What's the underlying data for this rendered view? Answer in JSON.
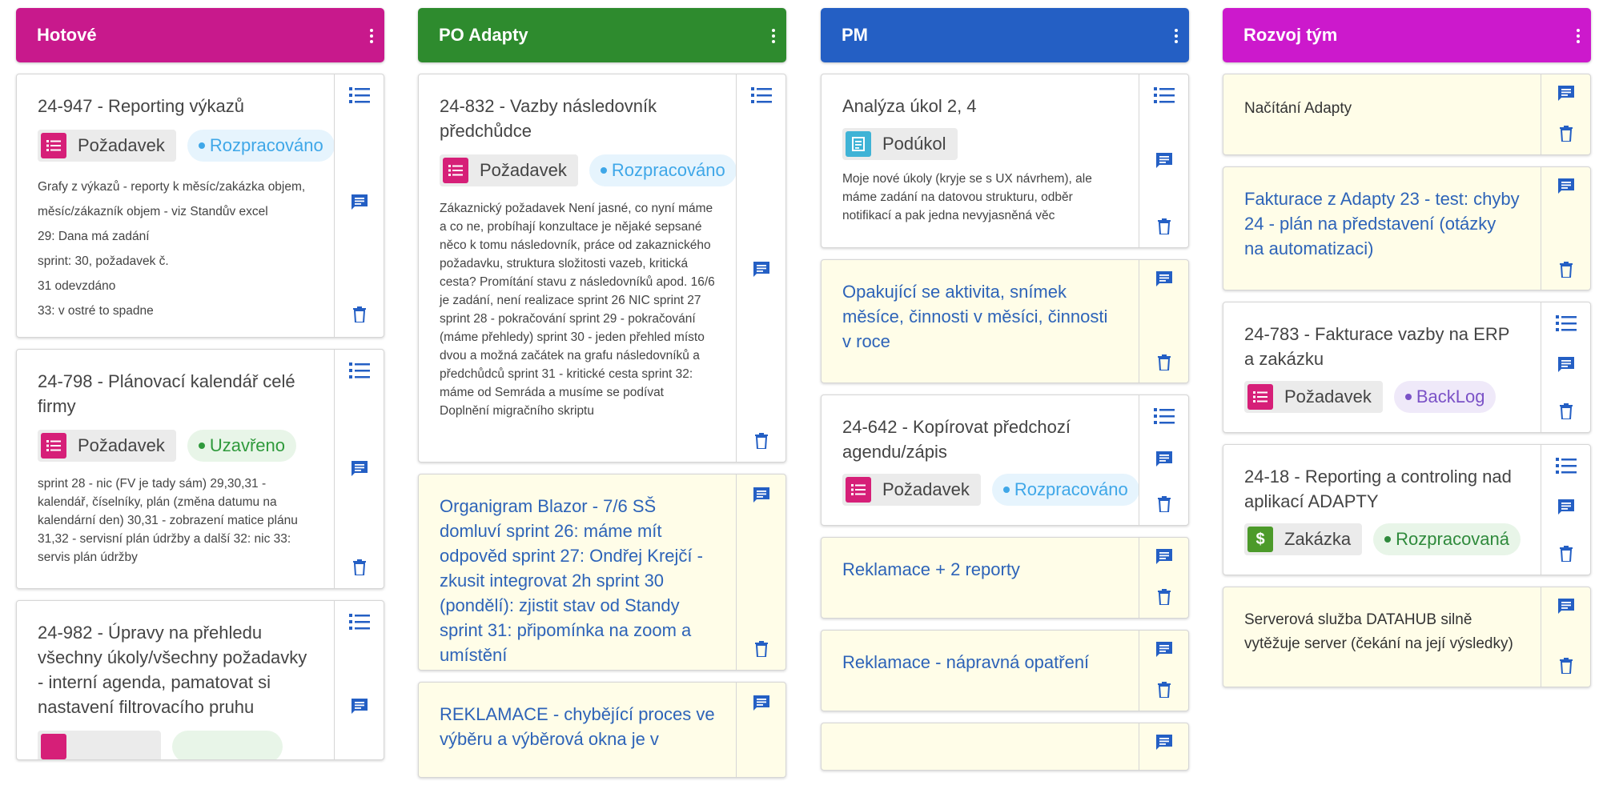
{
  "colors": {
    "hotove": "#c8198c",
    "po_adapty": "#2e8b2e",
    "pm": "#245fc4",
    "rozvoj": "#cc19cc",
    "icon_blue": "#245fc4",
    "status_blue_text": "#3fa7e8",
    "status_blue_bg": "#e6f4fd",
    "status_green_text": "#2f9a3c",
    "status_green_bg": "#e8f5e8",
    "status_purple_text": "#7b52c7",
    "status_purple_bg": "#efe9f9",
    "zakazka_text": "#2f8a3c"
  },
  "columns": [
    {
      "title": "Hotové",
      "cards": [
        {
          "title": "24-947 - Reporting výkazů",
          "type": "Požadavek",
          "status": "Rozpracováno",
          "description": [
            "Grafy z výkazů - reporty k měsíc/zakázka objem, měsíc/zákazník objem - viz Standův excel",
            "29: Dana má zadání",
            "sprint: 30, požadavek č.",
            "31 odevzdáno",
            "33: v ostré to spadne"
          ]
        },
        {
          "title": "24-798 - Plánovací kalendář celé firmy",
          "type": "Požadavek",
          "status": "Uzavřeno",
          "description": [
            "sprint 28 - nic (FV je tady sám) 29,30,31 - kalendář, číselníky, plán (změna datumu na kalendární den) 30,31 - zobrazení matice plánu 31,32 - servisní plán údržby a další 32: nic 33: servis plán údržby"
          ]
        },
        {
          "title": "24-982 - Úpravy na přehledu všechny úkoly/všechny požadavky - interní agenda, pamatovat si nastavení filtrovacího pruhu"
        }
      ]
    },
    {
      "title": "PO Adapty",
      "cards": [
        {
          "title": "24-832 - Vazby následovník předchůdce",
          "type": "Požadavek",
          "status": "Rozpracováno",
          "description": [
            "Zákaznický požadavek Není jasné, co nyní máme a co ne, probíhají konzultace je nějaké sepsané něco k tomu následovník, práce od zakaznického požadavku, struktura složitosti vazeb, kritická cesta? Promítání stavu z následovníků apod. 16/6 je zadání, není realizace sprint 26 NIC sprint 27 sprint 28 - pokračování sprint 29 - pokračování (máme přehledy) sprint 30 - jeden přehled místo dvou a možná začátek na grafu následovníků a předchůdců sprint 31 - kritické cesta sprint 32: máme od Semráda a musíme se podívat Doplnění migračního skriptu"
          ]
        },
        {
          "note": "Organigram Blazor - 7/6 SŠ domluví sprint 26: máme mít odpověd sprint 27: Ondřej Krejčí - zkusit integrovat 2h sprint 30 (pondělí): zjistit stav od Standy sprint 31: připomínka na zoom a umístění"
        },
        {
          "note": "REKLAMACE - chybějící proces ve výběru a výběrová okna je v"
        }
      ]
    },
    {
      "title": "PM",
      "cards": [
        {
          "title": "Analýza úkol 2, 4",
          "type": "Podúkol",
          "description": [
            "Moje nové úkoly (kryje se s UX návrhem), ale máme zadání na datovou strukturu, odběr notifikací a pak jedna nevyjasněná věc"
          ]
        },
        {
          "note": "Opakující se aktivita, snímek měsíce, činnosti v měsíci, činnosti v roce"
        },
        {
          "title": "24-642 - Kopírovat předchozí agendu/zápis",
          "type": "Požadavek",
          "status": "Rozpracováno"
        },
        {
          "note": "Reklamace + 2 reporty"
        },
        {
          "note": "Reklamace - nápravná opatření"
        }
      ]
    },
    {
      "title": "Rozvoj tým",
      "cards": [
        {
          "note": "Načítání Adapty"
        },
        {
          "note": "Fakturace z Adapty 23 - test: chyby 24 - plán na představení (otázky na automatizaci)"
        },
        {
          "title": "24-783 - Fakturace vazby na ERP a zakázku",
          "type": "Požadavek",
          "status": "BackLog"
        },
        {
          "title": "24-18 - Reporting a controling nad aplikací ADAPTY",
          "type": "Zakázka",
          "status": "Rozpracovaná"
        },
        {
          "note": "Serverová služba DATAHUB silně vytěžuje server (čekání na její výsledky)"
        }
      ]
    }
  ]
}
